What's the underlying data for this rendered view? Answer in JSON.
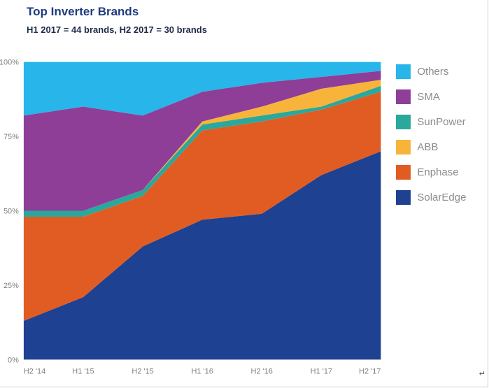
{
  "header": {
    "title": "Top Inverter Brands",
    "subtitle": "H1 2017 = 44 brands, H2 2017 = 30 brands"
  },
  "artifact": "↵",
  "chart_data": {
    "type": "area",
    "stacked": true,
    "title": "Top Inverter Brands",
    "subtitle": "H1 2017 = 44 brands, H2 2017 = 30 brands",
    "x": [
      "H2 '14",
      "H1 '15",
      "H2 '15",
      "H1 '16",
      "H2 '16",
      "H1 '17",
      "H2 '17"
    ],
    "series": [
      {
        "name": "SolarEdge",
        "color": "#1e4191",
        "values": [
          13,
          21,
          38,
          47,
          49,
          62,
          70
        ]
      },
      {
        "name": "Enphase",
        "color": "#e15c22",
        "values": [
          35,
          27,
          17,
          30,
          31,
          22,
          20
        ]
      },
      {
        "name": "SunPower",
        "color": "#2ba89c",
        "values": [
          2,
          2,
          2,
          2,
          2,
          1,
          2
        ]
      },
      {
        "name": "ABB",
        "color": "#f8b43a",
        "values": [
          0,
          0,
          0,
          1,
          3,
          6,
          2
        ]
      },
      {
        "name": "SMA",
        "color": "#8e3e97",
        "values": [
          32,
          35,
          25,
          10,
          8,
          4,
          3
        ]
      },
      {
        "name": "Others",
        "color": "#27b5ea",
        "values": [
          18,
          15,
          18,
          10,
          7,
          5,
          3
        ]
      }
    ],
    "yticks": [
      "0%",
      "25%",
      "50%",
      "75%",
      "100%"
    ],
    "ylim": [
      0,
      100
    ],
    "grid": false,
    "legend_position": "right",
    "legend_order": [
      "Others",
      "SMA",
      "SunPower",
      "ABB",
      "Enphase",
      "SolarEdge"
    ]
  }
}
